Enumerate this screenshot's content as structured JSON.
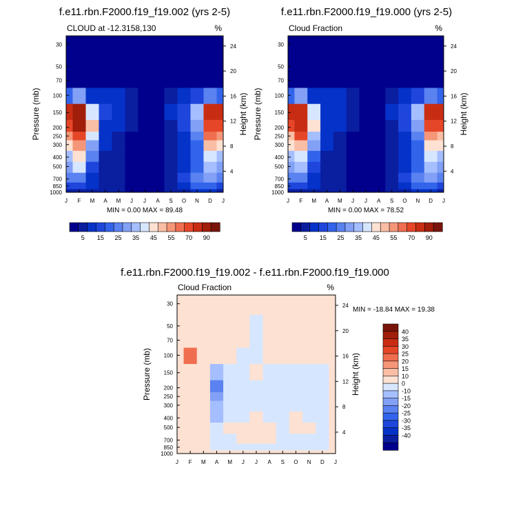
{
  "colors": {
    "blue_red_14": [
      "#00008c",
      "#0a1ea0",
      "#0532c8",
      "#1e46dc",
      "#3264eb",
      "#5a82f0",
      "#82a0f5",
      "#a5beff",
      "#d7e6ff",
      "#fde1d2",
      "#fabea5",
      "#f59678",
      "#f06e50",
      "#e64628",
      "#c82d14",
      "#a01e0a",
      "#78140a"
    ],
    "diff_14": [
      "#00008c",
      "#0a1ea0",
      "#0532c8",
      "#1e46dc",
      "#3264eb",
      "#5a82f0",
      "#82a0f5",
      "#a5beff",
      "#d7e6ff",
      "#fde1d2",
      "#fabea5",
      "#f59678",
      "#f06e50",
      "#e64628",
      "#c82d14",
      "#a01e0a",
      "#78140a"
    ]
  },
  "chart_data": [
    {
      "type": "heatmap",
      "title": "f.e11.rbn.F2000.f19_f19.002 (yrs 2-5)",
      "left_label": "CLOUD at -12.3158,130",
      "right_label": "%",
      "ylabel": "Pressure (mb)",
      "ylabel_right": "Height (km)",
      "x_ticks": [
        "J",
        "F",
        "M",
        "A",
        "M",
        "J",
        "J",
        "A",
        "S",
        "O",
        "N",
        "D",
        "J"
      ],
      "y_ticks": [
        "30",
        "50",
        "70",
        "100",
        "150",
        "200",
        "250",
        "300",
        "400",
        "500",
        "700",
        "850",
        "1000"
      ],
      "y_ticks_right": [
        "24",
        "20",
        "16",
        "12",
        "8",
        "4"
      ],
      "stats": "MIN =   0.00 MAX =  89.48",
      "colorbar_labels": [
        "5",
        "15",
        "25",
        "35",
        "45",
        "55",
        "70",
        "90"
      ],
      "months": [
        "J",
        "F",
        "M",
        "A",
        "M",
        "J",
        "J",
        "A",
        "S",
        "O",
        "N",
        "D",
        "J"
      ],
      "pressure_levels": [
        30,
        50,
        70,
        100,
        150,
        200,
        250,
        300,
        400,
        500,
        700,
        850,
        1000
      ],
      "values": [
        [
          0,
          0,
          0,
          0,
          0,
          0,
          0,
          0,
          0,
          0,
          0,
          0,
          0
        ],
        [
          0,
          0,
          0,
          0,
          0,
          0,
          0,
          0,
          0,
          0,
          0,
          0,
          0
        ],
        [
          0,
          0,
          0,
          0,
          0,
          0,
          0,
          0,
          0,
          0,
          0,
          0,
          0
        ],
        [
          20,
          30,
          10,
          8,
          6,
          4,
          0,
          0,
          3,
          8,
          12,
          25,
          20
        ],
        [
          80,
          89,
          40,
          12,
          8,
          5,
          0,
          0,
          6,
          15,
          35,
          80,
          80
        ],
        [
          70,
          85,
          50,
          10,
          6,
          3,
          0,
          0,
          4,
          12,
          30,
          70,
          70
        ],
        [
          55,
          70,
          40,
          8,
          4,
          0,
          0,
          0,
          3,
          10,
          25,
          60,
          55
        ],
        [
          45,
          55,
          30,
          6,
          3,
          0,
          0,
          0,
          2,
          8,
          20,
          50,
          45
        ],
        [
          35,
          45,
          22,
          5,
          2,
          0,
          0,
          0,
          2,
          8,
          18,
          40,
          35
        ],
        [
          30,
          40,
          15,
          5,
          2,
          0,
          0,
          0,
          3,
          10,
          20,
          35,
          30
        ],
        [
          25,
          25,
          10,
          4,
          2,
          0,
          0,
          0,
          3,
          12,
          22,
          30,
          25
        ],
        [
          15,
          15,
          8,
          4,
          3,
          0,
          0,
          0,
          4,
          10,
          18,
          20,
          15
        ],
        [
          5,
          5,
          4,
          2,
          1,
          0,
          0,
          0,
          2,
          5,
          8,
          6,
          5
        ]
      ]
    },
    {
      "type": "heatmap",
      "title": "f.e11.rbn.F2000.f19_f19.000 (yrs 2-5)",
      "left_label": "Cloud Fraction",
      "right_label": "%",
      "ylabel": "Pressure (mb)",
      "ylabel_right": "Height (km)",
      "x_ticks": [
        "J",
        "F",
        "M",
        "A",
        "M",
        "J",
        "J",
        "A",
        "S",
        "O",
        "N",
        "D",
        "J"
      ],
      "y_ticks": [
        "30",
        "50",
        "70",
        "100",
        "150",
        "200",
        "250",
        "300",
        "400",
        "500",
        "700",
        "850",
        "1000"
      ],
      "y_ticks_right": [
        "24",
        "20",
        "16",
        "12",
        "8",
        "4"
      ],
      "stats": "MIN =   0.00 MAX =  78.52",
      "colorbar_labels": [
        "5",
        "15",
        "25",
        "35",
        "45",
        "55",
        "70",
        "90"
      ],
      "months": [
        "J",
        "F",
        "M",
        "A",
        "M",
        "J",
        "J",
        "A",
        "S",
        "O",
        "N",
        "D",
        "J"
      ],
      "pressure_levels": [
        30,
        50,
        70,
        100,
        150,
        200,
        250,
        300,
        400,
        500,
        700,
        850,
        1000
      ],
      "values": [
        [
          0,
          0,
          0,
          0,
          0,
          0,
          0,
          0,
          0,
          0,
          0,
          0,
          0
        ],
        [
          0,
          0,
          0,
          0,
          0,
          0,
          0,
          0,
          0,
          0,
          0,
          0,
          0
        ],
        [
          0,
          0,
          0,
          0,
          0,
          0,
          0,
          0,
          0,
          0,
          0,
          0,
          0
        ],
        [
          20,
          28,
          10,
          8,
          6,
          4,
          0,
          0,
          3,
          8,
          12,
          25,
          20
        ],
        [
          72,
          78,
          38,
          10,
          8,
          5,
          0,
          0,
          6,
          15,
          35,
          75,
          72
        ],
        [
          65,
          75,
          45,
          10,
          6,
          3,
          0,
          0,
          4,
          12,
          30,
          68,
          65
        ],
        [
          50,
          62,
          35,
          8,
          4,
          0,
          0,
          0,
          3,
          10,
          25,
          55,
          50
        ],
        [
          42,
          50,
          28,
          6,
          3,
          0,
          0,
          0,
          2,
          8,
          20,
          45,
          42
        ],
        [
          32,
          40,
          20,
          5,
          2,
          0,
          0,
          0,
          2,
          8,
          18,
          38,
          32
        ],
        [
          28,
          35,
          14,
          5,
          2,
          0,
          0,
          0,
          3,
          10,
          20,
          32,
          28
        ],
        [
          22,
          22,
          9,
          4,
          2,
          0,
          0,
          0,
          3,
          12,
          22,
          28,
          22
        ],
        [
          14,
          14,
          8,
          4,
          3,
          0,
          0,
          0,
          4,
          10,
          18,
          18,
          14
        ],
        [
          5,
          5,
          4,
          2,
          1,
          0,
          0,
          0,
          2,
          5,
          8,
          6,
          5
        ]
      ]
    },
    {
      "type": "heatmap",
      "title": "f.e11.rbn.F2000.f19_f19.002 - f.e11.rbn.F2000.f19_f19.000",
      "left_label": "Cloud Fraction",
      "right_label": "%",
      "ylabel": "Pressure (mb)",
      "ylabel_right": "Height (km)",
      "x_ticks": [
        "J",
        "F",
        "M",
        "A",
        "M",
        "J",
        "J",
        "A",
        "S",
        "O",
        "N",
        "D",
        "J"
      ],
      "y_ticks": [
        "30",
        "50",
        "70",
        "100",
        "150",
        "200",
        "250",
        "300",
        "400",
        "500",
        "700",
        "850",
        "1000"
      ],
      "y_ticks_right": [
        "24",
        "20",
        "16",
        "12",
        "8",
        "4"
      ],
      "stats": "MIN = -18.84 MAX =  19.38",
      "colorbar_labels": [
        "40",
        "35",
        "30",
        "25",
        "20",
        "15",
        "10",
        "0",
        "-10",
        "-15",
        "-20",
        "-25",
        "-30",
        "-35",
        "-40"
      ],
      "months": [
        "J",
        "F",
        "M",
        "A",
        "M",
        "J",
        "J",
        "A",
        "S",
        "O",
        "N",
        "D",
        "J"
      ],
      "pressure_levels": [
        30,
        50,
        70,
        100,
        150,
        200,
        250,
        300,
        400,
        500,
        700,
        850,
        1000
      ],
      "values": [
        [
          2,
          2,
          2,
          2,
          2,
          2,
          2,
          2,
          2,
          2,
          2,
          2,
          2
        ],
        [
          2,
          2,
          2,
          2,
          2,
          2,
          -3,
          2,
          2,
          2,
          2,
          2,
          2
        ],
        [
          2,
          2,
          2,
          2,
          2,
          2,
          -3,
          2,
          2,
          2,
          2,
          2,
          2
        ],
        [
          2,
          19,
          2,
          2,
          2,
          -3,
          -3,
          2,
          2,
          2,
          2,
          2,
          2
        ],
        [
          2,
          2,
          2,
          -8,
          -3,
          -3,
          2,
          -3,
          -3,
          -3,
          -3,
          -3,
          2
        ],
        [
          2,
          2,
          8,
          -18,
          -3,
          -3,
          -3,
          -3,
          -3,
          -3,
          -3,
          -3,
          2
        ],
        [
          2,
          2,
          8,
          -12,
          -3,
          -3,
          -3,
          -3,
          -3,
          -3,
          -3,
          -3,
          2
        ],
        [
          2,
          2,
          2,
          -8,
          -3,
          -3,
          -3,
          -3,
          -3,
          -3,
          -3,
          -3,
          2
        ],
        [
          2,
          2,
          2,
          -5,
          -3,
          -3,
          2,
          -3,
          -3,
          2,
          -3,
          -3,
          2
        ],
        [
          2,
          2,
          2,
          -3,
          2,
          2,
          2,
          2,
          -3,
          2,
          2,
          -3,
          2
        ],
        [
          2,
          2,
          2,
          -3,
          -3,
          2,
          2,
          2,
          -3,
          -3,
          -3,
          -3,
          2
        ],
        [
          2,
          2,
          2,
          -3,
          -3,
          -3,
          -3,
          -3,
          -3,
          -3,
          -3,
          -3,
          2
        ],
        [
          2,
          2,
          2,
          2,
          2,
          2,
          2,
          2,
          2,
          2,
          2,
          2,
          2
        ]
      ]
    }
  ]
}
